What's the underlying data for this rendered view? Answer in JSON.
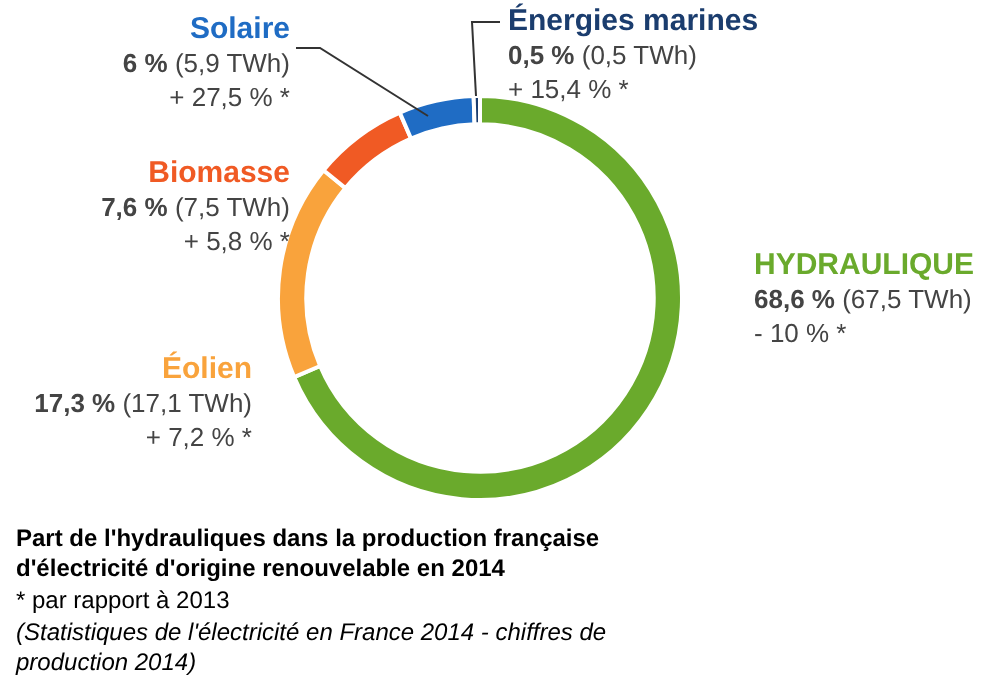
{
  "chart_data": {
    "type": "donut",
    "title": "Part de l'hydrauliques  dans la production française d'électricité d'origine renouvelable en 2014",
    "categories": [
      "HYDRAULIQUE",
      "Éolien",
      "Biomasse",
      "Solaire",
      "Énergies marines"
    ],
    "values": [
      68.6,
      17.3,
      7.6,
      6,
      0.5
    ],
    "colors": [
      "#6aaa2c",
      "#f9a33c",
      "#f05a24",
      "#1f6cc4",
      "#1b3d6e"
    ],
    "value_labels": [
      "68,6 % (67,5 TWh)\n- 10 % *",
      "17,3 % (17,1 TWh)\n+ 7,2 % *",
      "7,6 % (7,5 TWh)\n+ 5,8 % *",
      "6 % (5,9 TWh)\n+ 27,5 % *",
      "0,5 % (0,5 TWh)\n+ 15,4 % *"
    ],
    "annotations": [
      "* par rapport à 2013",
      "(Statistiques de l'électricité en France 2014 - chiffres de production 2014)"
    ],
    "legend": false
  }
}
